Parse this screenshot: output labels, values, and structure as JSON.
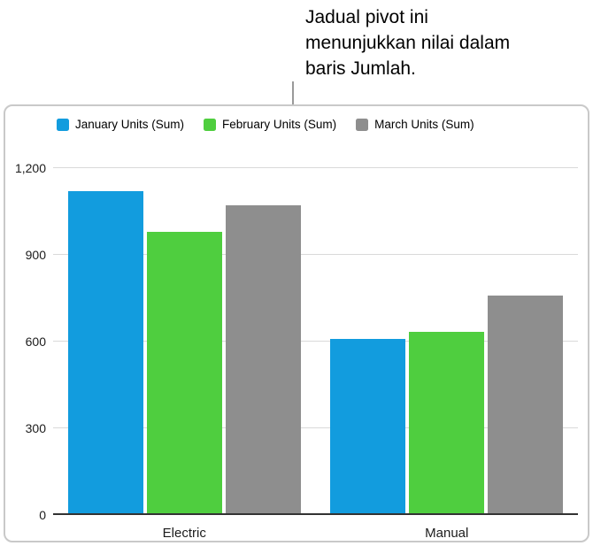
{
  "callout": {
    "lines": [
      "Jadual pivot ini",
      "menunjukkan nilai dalam",
      "baris Jumlah."
    ]
  },
  "chart_data": {
    "type": "bar",
    "title": "",
    "categories": [
      "Electric",
      "Manual"
    ],
    "series": [
      {
        "name": "January Units (Sum)",
        "color": "#129cde",
        "values": [
          1120,
          610
        ]
      },
      {
        "name": "February Units (Sum)",
        "color": "#4fce3f",
        "values": [
          980,
          635
        ]
      },
      {
        "name": "March Units (Sum)",
        "color": "#8e8e8e",
        "values": [
          1070,
          760
        ]
      }
    ],
    "xlabel": "",
    "ylabel": "",
    "ylim": [
      0,
      1200
    ],
    "yticks": [
      0,
      300,
      600,
      900,
      1200
    ],
    "ytick_labels": [
      "0",
      "300",
      "600",
      "900",
      "1,200"
    ],
    "grid": true,
    "legend_position": "top",
    "baseline_color": "#333333",
    "gridline_color": "#d9d9d9"
  }
}
